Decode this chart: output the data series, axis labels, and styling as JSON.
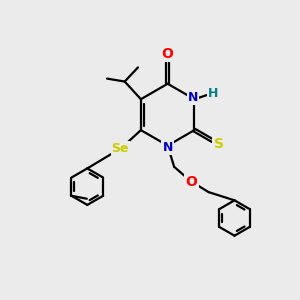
{
  "bg_color": "#ebebeb",
  "bond_color": "#000000",
  "atom_colors": {
    "O": "#ff0000",
    "N": "#0000cd",
    "H": "#008080",
    "S": "#cccc00",
    "Se": "#cccc00",
    "C": "#000000"
  }
}
